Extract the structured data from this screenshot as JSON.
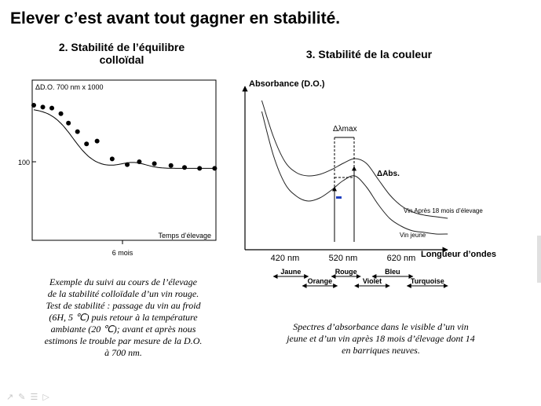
{
  "slide": {
    "title": "Elever c’est avant tout gagner en stabilité."
  },
  "left_panel": {
    "heading_line1": "2. Stabilité de l’équilibre",
    "heading_line2": "colloïdal",
    "caption_lines": [
      "Exemple du suivi au cours de l’élevage",
      "de la stabilité colloïdale d’un vin rouge.",
      "Test de stabilité : passage du vin au froid",
      "(6H, 5 ℃) puis retour à la température",
      "ambiante (20 ℃); avant et après nous",
      "estimons le trouble par mesure de la D.O.",
      "à 700 nm."
    ]
  },
  "right_panel": {
    "heading": "3. Stabilité de la couleur",
    "caption_lines": [
      "Spectres d’absorbance dans le visible d’un vin",
      "jeune et d’un vin après 18 mois d’élevage dont 14",
      "en barriques neuves."
    ]
  },
  "chart_data": [
    {
      "type": "scatter",
      "title": "",
      "ylabel": "ΔD.O. 700 nm x 1000",
      "xlabel": "Temps d’élevage",
      "y_tick_labels": [
        "100"
      ],
      "x_tick_labels": [
        "6 mois"
      ],
      "grid": false,
      "x": [
        0,
        0.6,
        1.2,
        1.8,
        2.3,
        2.9,
        3.5,
        4.2,
        5.2,
        6.2,
        7.0,
        8.0,
        9.1,
        10.0,
        11.0,
        12.0
      ],
      "y": [
        160,
        158,
        157,
        151,
        141,
        132,
        119,
        122,
        103,
        97,
        100,
        98,
        96,
        94,
        93,
        93
      ],
      "trend_line": true
    },
    {
      "type": "line",
      "title": "",
      "ylabel": "Absorbance (D.O.)",
      "xlabel": "Longueur d’ondes",
      "x_tick_labels": [
        "420 nm",
        "520 nm",
        "620 nm"
      ],
      "xlim": [
        380,
        700
      ],
      "series": [
        {
          "name": "Vin Après 18 mois d’élevage",
          "x": [
            380,
            400,
            420,
            440,
            460,
            480,
            500,
            520,
            540,
            560,
            580,
            600,
            620,
            640,
            660,
            680,
            700
          ],
          "y": [
            0.95,
            0.72,
            0.56,
            0.49,
            0.47,
            0.48,
            0.51,
            0.55,
            0.58,
            0.55,
            0.45,
            0.35,
            0.28,
            0.24,
            0.22,
            0.21,
            0.2
          ]
        },
        {
          "name": "Vin jeune",
          "x": [
            380,
            400,
            420,
            440,
            460,
            480,
            500,
            520,
            540,
            560,
            580,
            600,
            620,
            640,
            660,
            680,
            700
          ],
          "y": [
            0.88,
            0.6,
            0.42,
            0.34,
            0.31,
            0.33,
            0.38,
            0.44,
            0.47,
            0.4,
            0.29,
            0.2,
            0.15,
            0.12,
            0.11,
            0.1,
            0.1
          ]
        }
      ],
      "annotations": [
        "Δλmax",
        "ΔAbs."
      ],
      "color_bands": [
        {
          "label": "Jaune",
          "from": 400,
          "to": 460
        },
        {
          "label": "Orange",
          "from": 450,
          "to": 510
        },
        {
          "label": "Rouge",
          "from": 500,
          "to": 550
        },
        {
          "label": "Violet",
          "from": 540,
          "to": 600
        },
        {
          "label": "Bleu",
          "from": 570,
          "to": 640
        },
        {
          "label": "Turquoise",
          "from": 630,
          "to": 700
        }
      ]
    }
  ]
}
